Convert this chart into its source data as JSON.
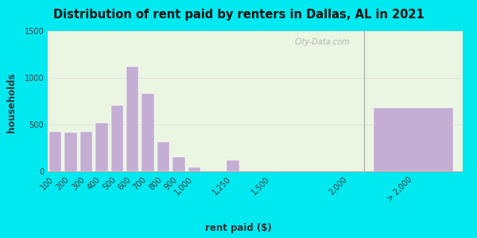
{
  "title": "Distribution of rent paid by renters in Dallas, AL in 2021",
  "xlabel": "rent paid ($)",
  "ylabel": "households",
  "bar_color": "#c4aed4",
  "bar_edgecolor": "#ffffff",
  "background_outer": "#00e8f0",
  "background_inner": "#eaf5e2",
  "ylim": [
    0,
    1500
  ],
  "yticks": [
    0,
    500,
    1000,
    1500
  ],
  "categories": [
    "100",
    "200",
    "300",
    "400",
    "500",
    "600",
    "700",
    "800",
    "900",
    "1,000",
    "1,250",
    "1,500",
    "2,000",
    "> 2,000"
  ],
  "values": [
    420,
    415,
    420,
    520,
    700,
    1120,
    830,
    310,
    155,
    40,
    115,
    0,
    0,
    680
  ],
  "watermark": "City-Data.com",
  "title_fontsize": 10.5,
  "axis_label_fontsize": 8.5,
  "tick_fontsize": 7
}
